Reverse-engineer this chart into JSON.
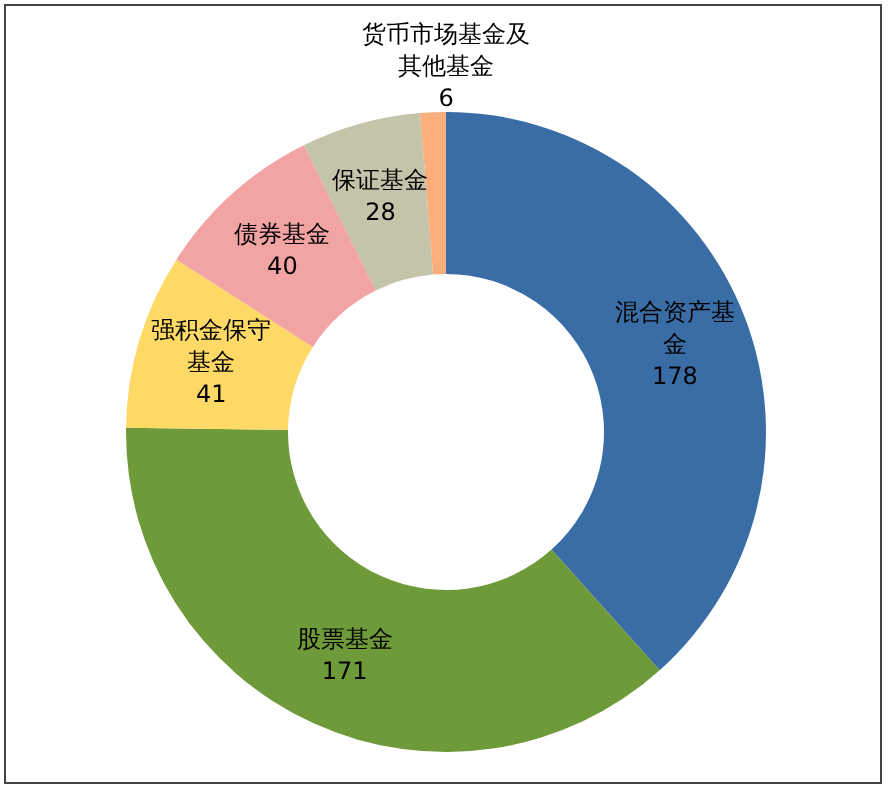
{
  "chart_data": {
    "type": "donut",
    "categories": [
      "混合资产基金",
      "股票基金",
      "强积金保守基金",
      "债券基金",
      "保证基金",
      "货币市场基金及其他基金"
    ],
    "values": [
      178,
      171,
      41,
      40,
      28,
      6
    ],
    "colors": [
      "#3a6ca6",
      "#6f9a3a",
      "#ffd966",
      "#f2a3a3",
      "#c4c4aa",
      "#f9ae7c"
    ],
    "data_labels": true,
    "legend": false
  }
}
